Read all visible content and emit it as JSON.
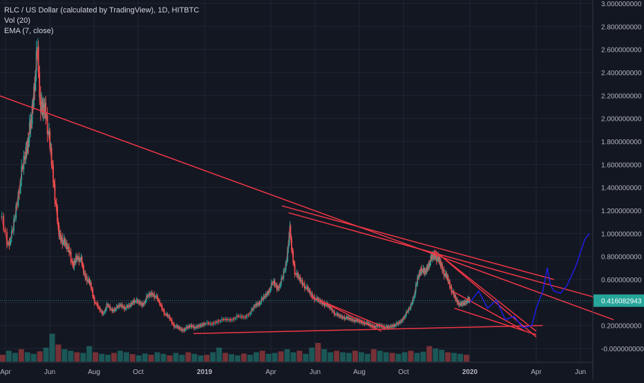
{
  "legend": {
    "title": "RLC / US Dollar (calculated by TradingView), 1D, HITBTC",
    "vol": "Vol (20)",
    "ema": "EMA (7, close)"
  },
  "chart_data": {
    "type": "candlestick",
    "title": "RLC / US Dollar (calculated by TradingView), 1D, HITBTC",
    "ylim": [
      -0.1,
      3.0
    ],
    "y_ticks": [
      3.0,
      2.8,
      2.6,
      2.4,
      2.2,
      2.0,
      1.8,
      1.6,
      1.4,
      1.2,
      1.0,
      0.8,
      0.6,
      0.4,
      0.2,
      0.0
    ],
    "y_tick_labels": [
      "3.000000000",
      "2.800000000",
      "2.600000000",
      "2.400000000",
      "2.200000000",
      "2.000000000",
      "1.800000000",
      "1.600000000",
      "1.400000000",
      "1.200000000",
      "1.000000000",
      "0.800000000",
      "0.600000000",
      "0.400000000",
      "0.200000000",
      "-0.000000000"
    ],
    "x_ticks": [
      {
        "label": "Apr",
        "t": 0.0
      },
      {
        "label": "Jun",
        "t": 2.0
      },
      {
        "label": "Aug",
        "t": 4.0
      },
      {
        "label": "Oct",
        "t": 6.0
      },
      {
        "label": "2019",
        "t": 9.0
      },
      {
        "label": "Apr",
        "t": 12.0
      },
      {
        "label": "Jun",
        "t": 14.0
      },
      {
        "label": "Aug",
        "t": 16.0
      },
      {
        "label": "Oct",
        "t": 18.0
      },
      {
        "label": "2020",
        "t": 21.0
      },
      {
        "label": "Apr",
        "t": 24.0
      },
      {
        "label": "Jun",
        "t": 26.0
      }
    ],
    "last_price": 0.416082943,
    "last_price_label": "0.416082943",
    "price_path": [
      [
        -0.2,
        1.15
      ],
      [
        0.1,
        0.9
      ],
      [
        0.3,
        1.0
      ],
      [
        0.5,
        1.25
      ],
      [
        0.7,
        1.5
      ],
      [
        0.9,
        1.7
      ],
      [
        1.05,
        1.85
      ],
      [
        1.15,
        1.95
      ],
      [
        1.3,
        2.3
      ],
      [
        1.45,
        2.6
      ],
      [
        1.55,
        2.2
      ],
      [
        1.65,
        2.05
      ],
      [
        1.8,
        2.1
      ],
      [
        1.95,
        1.85
      ],
      [
        2.1,
        1.6
      ],
      [
        2.25,
        1.3
      ],
      [
        2.4,
        1.0
      ],
      [
        2.55,
        0.95
      ],
      [
        2.7,
        0.9
      ],
      [
        2.9,
        0.85
      ],
      [
        3.05,
        0.7
      ],
      [
        3.2,
        0.8
      ],
      [
        3.4,
        0.78
      ],
      [
        3.55,
        0.65
      ],
      [
        3.7,
        0.6
      ],
      [
        3.85,
        0.55
      ],
      [
        4.0,
        0.42
      ],
      [
        4.2,
        0.35
      ],
      [
        4.4,
        0.3
      ],
      [
        4.6,
        0.38
      ],
      [
        4.8,
        0.33
      ],
      [
        5.0,
        0.35
      ],
      [
        5.2,
        0.38
      ],
      [
        5.4,
        0.35
      ],
      [
        5.6,
        0.37
      ],
      [
        5.8,
        0.42
      ],
      [
        6.0,
        0.4
      ],
      [
        6.2,
        0.38
      ],
      [
        6.4,
        0.45
      ],
      [
        6.6,
        0.48
      ],
      [
        6.8,
        0.45
      ],
      [
        7.0,
        0.38
      ],
      [
        7.2,
        0.3
      ],
      [
        7.4,
        0.27
      ],
      [
        7.6,
        0.2
      ],
      [
        7.8,
        0.18
      ],
      [
        8.0,
        0.16
      ],
      [
        8.2,
        0.18
      ],
      [
        8.4,
        0.2
      ],
      [
        8.6,
        0.18
      ],
      [
        8.8,
        0.2
      ],
      [
        9.0,
        0.22
      ],
      [
        9.3,
        0.21
      ],
      [
        9.6,
        0.24
      ],
      [
        9.9,
        0.25
      ],
      [
        10.2,
        0.25
      ],
      [
        10.5,
        0.28
      ],
      [
        10.8,
        0.27
      ],
      [
        11.1,
        0.32
      ],
      [
        11.3,
        0.38
      ],
      [
        11.5,
        0.4
      ],
      [
        11.7,
        0.45
      ],
      [
        11.9,
        0.5
      ],
      [
        12.1,
        0.58
      ],
      [
        12.3,
        0.52
      ],
      [
        12.5,
        0.6
      ],
      [
        12.7,
        0.75
      ],
      [
        12.85,
        1.05
      ],
      [
        12.95,
        0.85
      ],
      [
        13.1,
        0.65
      ],
      [
        13.3,
        0.6
      ],
      [
        13.5,
        0.55
      ],
      [
        13.7,
        0.5
      ],
      [
        13.9,
        0.45
      ],
      [
        14.1,
        0.42
      ],
      [
        14.3,
        0.4
      ],
      [
        14.5,
        0.38
      ],
      [
        14.7,
        0.35
      ],
      [
        14.9,
        0.3
      ],
      [
        15.1,
        0.28
      ],
      [
        15.3,
        0.27
      ],
      [
        15.5,
        0.26
      ],
      [
        15.7,
        0.25
      ],
      [
        15.9,
        0.24
      ],
      [
        16.1,
        0.23
      ],
      [
        16.3,
        0.22
      ],
      [
        16.5,
        0.2
      ],
      [
        16.7,
        0.19
      ],
      [
        16.9,
        0.2
      ],
      [
        17.1,
        0.19
      ],
      [
        17.3,
        0.18
      ],
      [
        17.5,
        0.2
      ],
      [
        17.7,
        0.21
      ],
      [
        17.9,
        0.24
      ],
      [
        18.1,
        0.3
      ],
      [
        18.3,
        0.36
      ],
      [
        18.5,
        0.48
      ],
      [
        18.65,
        0.62
      ],
      [
        18.8,
        0.7
      ],
      [
        18.95,
        0.65
      ],
      [
        19.1,
        0.72
      ],
      [
        19.25,
        0.78
      ],
      [
        19.4,
        0.82
      ],
      [
        19.55,
        0.78
      ],
      [
        19.7,
        0.72
      ],
      [
        19.85,
        0.65
      ],
      [
        20.0,
        0.6
      ],
      [
        20.15,
        0.52
      ],
      [
        20.3,
        0.45
      ],
      [
        20.45,
        0.4
      ],
      [
        20.6,
        0.38
      ],
      [
        20.75,
        0.4
      ],
      [
        20.9,
        0.42
      ],
      [
        21.0,
        0.416
      ]
    ],
    "volume_heights": [
      0.22,
      0.35,
      0.28,
      0.4,
      0.3,
      0.25,
      0.33,
      0.45,
      0.9,
      0.55,
      0.4,
      0.35,
      0.3,
      0.28,
      0.5,
      0.3,
      0.25,
      0.22,
      0.28,
      0.35,
      0.3,
      0.24,
      0.2,
      0.26,
      0.22,
      0.3,
      0.25,
      0.2,
      0.28,
      0.22,
      0.3,
      0.25,
      0.2,
      0.22,
      0.3,
      0.45,
      0.28,
      0.24,
      0.2,
      0.26,
      0.22,
      0.3,
      0.35,
      0.25,
      0.28,
      0.33,
      0.4,
      0.3,
      0.35,
      0.25,
      0.45,
      0.6,
      0.4,
      0.3,
      0.35,
      0.3,
      0.28,
      0.35,
      0.3,
      0.25,
      0.4,
      0.35,
      0.3,
      0.28,
      0.25,
      0.3,
      0.35,
      0.28,
      0.32,
      0.5,
      0.42,
      0.38,
      0.3,
      0.28,
      0.25,
      0.22
    ],
    "trendlines_red": [
      [
        [
          -0.3,
          2.2
        ],
        [
          27.5,
          0.25
        ]
      ],
      [
        [
          12.5,
          1.24
        ],
        [
          24.8,
          0.6
        ]
      ],
      [
        [
          12.8,
          1.18
        ],
        [
          27.5,
          0.4
        ]
      ],
      [
        [
          8.5,
          0.13
        ],
        [
          24.3,
          0.2
        ]
      ],
      [
        [
          13.8,
          0.45
        ],
        [
          17.2,
          0.18
        ]
      ],
      [
        [
          14.2,
          0.42
        ],
        [
          17.0,
          0.15
        ]
      ],
      [
        [
          19.4,
          0.85
        ],
        [
          24.0,
          0.15
        ]
      ],
      [
        [
          19.6,
          0.82
        ],
        [
          24.0,
          0.1
        ]
      ],
      [
        [
          20.2,
          0.5
        ],
        [
          23.5,
          0.15
        ]
      ],
      [
        [
          20.3,
          0.35
        ],
        [
          24.0,
          0.12
        ]
      ]
    ],
    "projection_blue": [
      [
        21.0,
        0.4
      ],
      [
        21.4,
        0.5
      ],
      [
        21.8,
        0.35
      ],
      [
        22.2,
        0.42
      ],
      [
        22.6,
        0.25
      ],
      [
        23.0,
        0.28
      ],
      [
        23.4,
        0.18
      ],
      [
        23.8,
        0.2
      ],
      [
        24.0,
        0.35
      ],
      [
        24.3,
        0.5
      ],
      [
        24.5,
        0.7
      ],
      [
        24.65,
        0.55
      ],
      [
        24.8,
        0.5
      ],
      [
        25.1,
        0.48
      ],
      [
        25.4,
        0.55
      ],
      [
        25.8,
        0.72
      ],
      [
        26.2,
        0.95
      ],
      [
        26.4,
        1.0
      ]
    ],
    "grid": true
  }
}
